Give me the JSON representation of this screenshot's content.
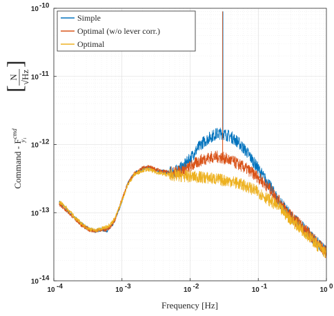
{
  "chart_data": {
    "type": "line",
    "title": "",
    "xlabel": "Frequency [Hz]",
    "ylabel_prefix": "Command - F",
    "ylabel_sup": "cmd",
    "ylabel_sub": "y₁",
    "ylabel_unit_num": "N",
    "ylabel_unit_den": "√Hz",
    "xscale": "log",
    "yscale": "log",
    "xlim": [
      0.0001,
      1
    ],
    "ylim": [
      1e-14,
      1e-10
    ],
    "grid": true,
    "legend_position": "top-left",
    "x_ticks": [
      {
        "value": 0.0001,
        "mantissa": "10",
        "exp": "-4"
      },
      {
        "value": 0.001,
        "mantissa": "10",
        "exp": "-3"
      },
      {
        "value": 0.01,
        "mantissa": "10",
        "exp": "-2"
      },
      {
        "value": 0.1,
        "mantissa": "10",
        "exp": "-1"
      },
      {
        "value": 1,
        "mantissa": "10",
        "exp": "0"
      }
    ],
    "y_ticks": [
      {
        "value": 1e-14,
        "mantissa": "10",
        "exp": "-14"
      },
      {
        "value": 1e-13,
        "mantissa": "10",
        "exp": "-13"
      },
      {
        "value": 1e-12,
        "mantissa": "10",
        "exp": "-12"
      },
      {
        "value": 1e-11,
        "mantissa": "10",
        "exp": "-11"
      },
      {
        "value": 1e-10,
        "mantissa": "10",
        "exp": "-10"
      }
    ],
    "series": [
      {
        "name": "Simple",
        "color": "#0072BD",
        "x": [
          0.00012,
          0.00015,
          0.0002,
          0.00025,
          0.0003,
          0.00035,
          0.0004,
          0.0005,
          0.0006,
          0.0007,
          0.0008,
          0.001,
          0.0012,
          0.0015,
          0.002,
          0.0025,
          0.003,
          0.004,
          0.005,
          0.006,
          0.008,
          0.01,
          0.012,
          0.015,
          0.02,
          0.025,
          0.03,
          0.04,
          0.05,
          0.07,
          0.1,
          0.15,
          0.2,
          0.3,
          0.5,
          0.7,
          1.0
        ],
        "y": [
          1.4e-13,
          1.15e-13,
          8.5e-14,
          6.9e-14,
          6e-14,
          5.6e-14,
          5.4e-14,
          5.7e-14,
          5.5e-14,
          6.2e-14,
          8e-14,
          1.5e-13,
          2.6e-13,
          3.7e-13,
          4.4e-13,
          4.6e-13,
          4.3e-13,
          4e-13,
          3.9e-13,
          4e-13,
          4.8e-13,
          6.2e-13,
          8e-13,
          1.05e-12,
          1.3e-12,
          1.45e-12,
          1.45e-12,
          1.3e-12,
          1.1e-12,
          7.5e-13,
          4.4e-13,
          2.4e-13,
          1.5e-13,
          9e-14,
          5.5e-14,
          3.8e-14,
          2.6e-14
        ]
      },
      {
        "name": "Optimal (w/o lever corr.)",
        "color": "#D95319",
        "x": [
          0.00012,
          0.00015,
          0.0002,
          0.00025,
          0.0003,
          0.00035,
          0.0004,
          0.0005,
          0.0006,
          0.0007,
          0.0008,
          0.001,
          0.0012,
          0.0015,
          0.002,
          0.0025,
          0.003,
          0.004,
          0.005,
          0.006,
          0.008,
          0.01,
          0.012,
          0.015,
          0.02,
          0.025,
          0.03,
          0.04,
          0.05,
          0.07,
          0.1,
          0.15,
          0.2,
          0.3,
          0.5,
          0.7,
          1.0
        ],
        "y": [
          1.35e-13,
          1.1e-13,
          8.3e-14,
          6.7e-14,
          5.9e-14,
          5.5e-14,
          5.3e-14,
          5.6e-14,
          5.6e-14,
          6.3e-14,
          8.2e-14,
          1.55e-13,
          2.6e-13,
          3.7e-13,
          4.5e-13,
          4.7e-13,
          4.4e-13,
          4e-13,
          3.9e-13,
          3.9e-13,
          4.2e-13,
          4.7e-13,
          5.3e-13,
          6e-13,
          6.5e-13,
          6.6e-13,
          6.4e-13,
          5.8e-13,
          5.2e-13,
          4.3e-13,
          3.3e-13,
          2.2e-13,
          1.5e-13,
          9e-14,
          5.5e-14,
          3.8e-14,
          2.6e-14
        ]
      },
      {
        "name": "Optimal",
        "color": "#EDB120",
        "x": [
          0.00012,
          0.00015,
          0.0002,
          0.00025,
          0.0003,
          0.00035,
          0.0004,
          0.0005,
          0.0006,
          0.0007,
          0.0008,
          0.001,
          0.0012,
          0.0015,
          0.002,
          0.0025,
          0.003,
          0.004,
          0.005,
          0.006,
          0.008,
          0.01,
          0.012,
          0.015,
          0.02,
          0.025,
          0.03,
          0.04,
          0.05,
          0.07,
          0.1,
          0.15,
          0.2,
          0.3,
          0.5,
          0.7,
          1.0
        ],
        "y": [
          1.45e-13,
          1.2e-13,
          8.7e-14,
          7e-14,
          6.1e-14,
          5.7e-14,
          5.5e-14,
          5.8e-14,
          6.2e-14,
          7e-14,
          8.5e-14,
          1.5e-13,
          2.5e-13,
          3.6e-13,
          4.2e-13,
          4.3e-13,
          4e-13,
          3.7e-13,
          3.6e-13,
          3.5e-13,
          3.45e-13,
          3.4e-13,
          3.35e-13,
          3.3e-13,
          3.2e-13,
          3.1e-13,
          3e-13,
          2.9e-13,
          2.7e-13,
          2.4e-13,
          2e-13,
          1.5e-13,
          1.2e-13,
          8e-14,
          5e-14,
          3.5e-14,
          2.5e-14
        ]
      }
    ],
    "spike": {
      "x": 0.03,
      "y_top": 9e-11
    }
  }
}
